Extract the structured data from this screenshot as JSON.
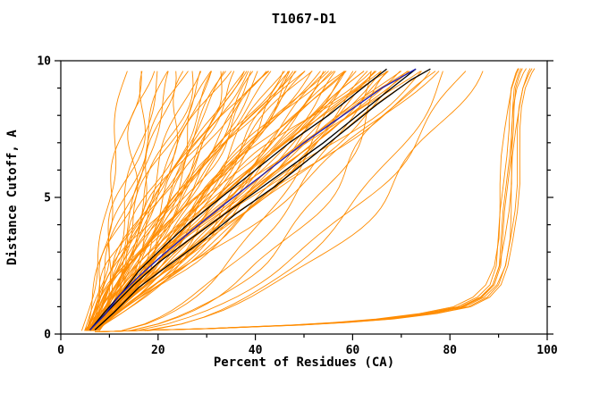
{
  "chart_data": {
    "type": "line",
    "title": "T1067-D1",
    "xlabel": "Percent of Residues (CA)",
    "ylabel": "Distance Cutoff, A",
    "xlim": [
      0,
      100
    ],
    "ylim": [
      0,
      10
    ],
    "x_major_ticks": [
      0,
      20,
      40,
      60,
      80,
      100
    ],
    "x_minor_ticks": [
      10,
      30,
      50,
      70,
      90
    ],
    "y_major_ticks": [
      0,
      5,
      10
    ],
    "y_minor_ticks": [
      1,
      2,
      3,
      4,
      6,
      7,
      8,
      9
    ],
    "grid": false,
    "legend": null,
    "colors": {
      "model_curves": "#ff8c00",
      "highlight_black": "#000000",
      "highlight_blue": "#1f1fb4",
      "axis": "#000000",
      "background": "#ffffff"
    },
    "orange_bundle": {
      "y_start": 0.12,
      "y_end": 9.72,
      "curves": [
        [
          4,
          14,
          0.8
        ],
        [
          5,
          16,
          0.9
        ],
        [
          4.5,
          18,
          0.75
        ],
        [
          6,
          19,
          1.0
        ],
        [
          5,
          21,
          0.85
        ],
        [
          7,
          22,
          1.1
        ],
        [
          4,
          23,
          0.7
        ],
        [
          6,
          24,
          0.95
        ],
        [
          5.5,
          26,
          1.2
        ],
        [
          4.8,
          27,
          0.8
        ],
        [
          6.5,
          28,
          1.0
        ],
        [
          5,
          29,
          0.9
        ],
        [
          7,
          30,
          1.15
        ],
        [
          4.2,
          31,
          0.75
        ],
        [
          6,
          32,
          1.0
        ],
        [
          5.5,
          33,
          0.85
        ],
        [
          7.5,
          34,
          1.2
        ],
        [
          4.6,
          35,
          0.9
        ],
        [
          6.2,
          36,
          1.05
        ],
        [
          5.1,
          37,
          0.8
        ],
        [
          7.1,
          38,
          1.25
        ],
        [
          4.4,
          39,
          0.95
        ],
        [
          6.6,
          40,
          1.1
        ],
        [
          5.3,
          41,
          0.85
        ],
        [
          7.6,
          42,
          1.3
        ],
        [
          4.7,
          43,
          0.9
        ],
        [
          6.1,
          44,
          1.05
        ],
        [
          5.6,
          45,
          0.95
        ],
        [
          7.2,
          46,
          1.2
        ],
        [
          4.3,
          47,
          0.8
        ],
        [
          6.4,
          48,
          1.1
        ],
        [
          5.2,
          49,
          0.9
        ],
        [
          7.4,
          50,
          1.25
        ],
        [
          4.9,
          51,
          0.85
        ],
        [
          6.3,
          52,
          1.05
        ],
        [
          5.7,
          53,
          0.95
        ],
        [
          7.3,
          54,
          1.15
        ],
        [
          4.5,
          55,
          0.9
        ],
        [
          6.7,
          56,
          1.1
        ],
        [
          5.4,
          57,
          0.95
        ],
        [
          7.7,
          58,
          1.3
        ],
        [
          4.8,
          59,
          0.85
        ],
        [
          6.2,
          60,
          1.05
        ],
        [
          5.8,
          61,
          0.9
        ],
        [
          7.1,
          62,
          1.2
        ],
        [
          5,
          63,
          0.95
        ],
        [
          6.5,
          64,
          1.1
        ],
        [
          5.5,
          65,
          0.9
        ],
        [
          7.5,
          66,
          1.25
        ],
        [
          4.6,
          67,
          0.85
        ],
        [
          6.8,
          68,
          1.1
        ],
        [
          5.3,
          69,
          0.95
        ],
        [
          7.2,
          70,
          1.2
        ],
        [
          5.1,
          71,
          0.9
        ],
        [
          6.4,
          72,
          1.05
        ],
        [
          5.9,
          73,
          0.95
        ],
        [
          7.6,
          74,
          1.2
        ],
        [
          4.9,
          75,
          0.9
        ],
        [
          6.6,
          76,
          1.05
        ],
        [
          5.6,
          77,
          0.95
        ],
        [
          7.4,
          78,
          1.15
        ],
        [
          5.2,
          80,
          0.9
        ],
        [
          6.9,
          82,
          1.05
        ],
        [
          5,
          60,
          0.45
        ],
        [
          6,
          65,
          0.5
        ],
        [
          5.5,
          70,
          0.45
        ],
        [
          6.5,
          75,
          0.5
        ],
        [
          5,
          80,
          0.4
        ],
        [
          7,
          85,
          0.5
        ],
        [
          6,
          88,
          0.45
        ],
        [
          5.5,
          35,
          1.0
        ],
        [
          6,
          38,
          0.9
        ],
        [
          5,
          42,
          1.1
        ],
        [
          6.5,
          45,
          0.95
        ],
        [
          5.2,
          48,
          1.05
        ],
        [
          6.1,
          50,
          0.9
        ],
        [
          5.8,
          52,
          1.0
        ],
        [
          6.3,
          55,
          1.1
        ],
        [
          5.4,
          58,
          0.95
        ],
        [
          6.6,
          60,
          1.05
        ],
        [
          5.1,
          62,
          0.9
        ],
        [
          6.2,
          64,
          1.0
        ],
        [
          5.9,
          66,
          1.1
        ],
        [
          6.4,
          68,
          0.95
        ],
        [
          5.3,
          72,
          1.05
        ]
      ]
    },
    "outlier_cluster": {
      "base": [
        [
          7,
          0.08
        ],
        [
          18,
          0.14
        ],
        [
          30,
          0.2
        ],
        [
          40,
          0.27
        ],
        [
          48,
          0.33
        ],
        [
          57,
          0.42
        ],
        [
          66,
          0.55
        ],
        [
          75,
          0.75
        ],
        [
          82,
          1.0
        ],
        [
          86,
          1.35
        ],
        [
          88.5,
          1.8
        ],
        [
          90,
          2.5
        ],
        [
          90.8,
          3.5
        ],
        [
          91.3,
          4.5
        ],
        [
          91.7,
          5.5
        ],
        [
          92,
          6.5
        ],
        [
          92.4,
          7.5
        ],
        [
          92.8,
          8.3
        ],
        [
          93.4,
          9.0
        ],
        [
          94.5,
          9.55
        ],
        [
          95,
          9.72
        ]
      ],
      "offsets": [
        0,
        0.6,
        1.2,
        -0.6,
        1.8,
        -1.1,
        0.3,
        2.3
      ]
    },
    "black_curves": [
      [
        [
          6,
          0.15
        ],
        [
          9,
          0.8
        ],
        [
          13,
          1.6
        ],
        [
          16,
          2.3
        ],
        [
          20,
          3.0
        ],
        [
          26,
          4.0
        ],
        [
          33,
          5.0
        ],
        [
          40,
          6.0
        ],
        [
          47,
          7.0
        ],
        [
          55,
          8.0
        ],
        [
          62,
          9.0
        ],
        [
          67,
          9.7
        ]
      ],
      [
        [
          6,
          0.15
        ],
        [
          10,
          0.9
        ],
        [
          15,
          1.8
        ],
        [
          20,
          2.6
        ],
        [
          26,
          3.4
        ],
        [
          33,
          4.3
        ],
        [
          40,
          5.2
        ],
        [
          47,
          6.1
        ],
        [
          54,
          7.0
        ],
        [
          61,
          8.0
        ],
        [
          68,
          9.0
        ],
        [
          73,
          9.7
        ]
      ],
      [
        [
          7,
          0.15
        ],
        [
          11,
          0.8
        ],
        [
          16,
          1.7
        ],
        [
          22,
          2.5
        ],
        [
          29,
          3.4
        ],
        [
          36,
          4.4
        ],
        [
          44,
          5.4
        ],
        [
          51,
          6.4
        ],
        [
          58,
          7.4
        ],
        [
          65,
          8.4
        ],
        [
          72,
          9.3
        ],
        [
          76,
          9.7
        ]
      ]
    ],
    "blue_curve": [
      [
        6,
        0.15
      ],
      [
        9,
        0.7
      ],
      [
        12,
        1.4
      ],
      [
        16,
        2.1
      ],
      [
        21,
        2.9
      ],
      [
        27,
        3.8
      ],
      [
        34,
        4.8
      ],
      [
        42,
        5.9
      ],
      [
        50,
        7.0
      ],
      [
        58,
        8.0
      ],
      [
        66,
        9.0
      ],
      [
        73,
        9.7
      ]
    ]
  }
}
